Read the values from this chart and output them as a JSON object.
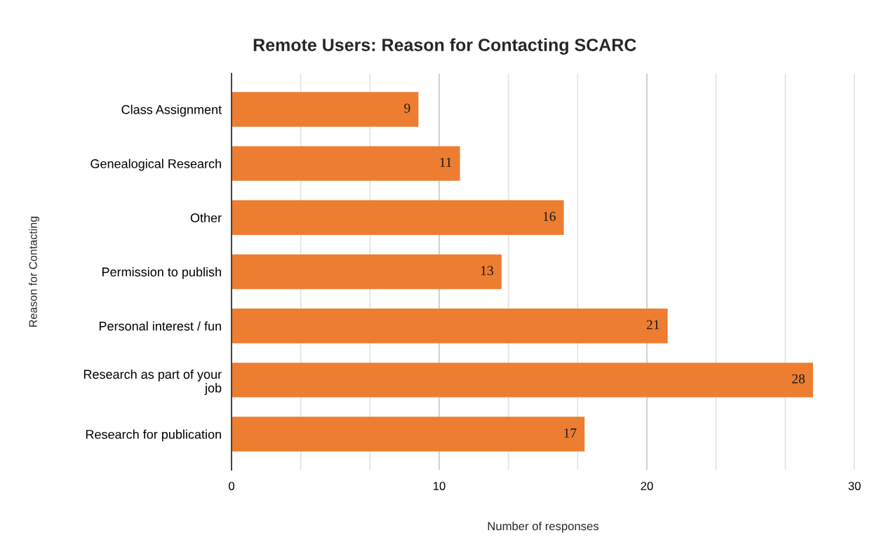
{
  "chart_data": {
    "type": "bar",
    "orientation": "horizontal",
    "title": "Remote Users: Reason for Contacting SCARC",
    "xlabel": "Number of responses",
    "ylabel": "Reason for Contacting",
    "categories": [
      "Class Assignment",
      "Genealogical Research",
      "Other",
      "Permission to publish",
      "Personal interest / fun",
      "Research as part of your\njob",
      "Research for publication"
    ],
    "values": [
      9,
      11,
      16,
      13,
      21,
      28,
      17
    ],
    "color": "#ed7d31",
    "xlim": [
      0,
      30
    ],
    "xticks": [
      0,
      {
        "value": 3.333,
        "label": null
      },
      {
        "value": 6.667,
        "label": null
      },
      10,
      {
        "value": 13.333,
        "label": null
      },
      {
        "value": 16.667,
        "label": null
      },
      20,
      {
        "value": 23.333,
        "label": null
      },
      {
        "value": 26.667,
        "label": null
      },
      30
    ],
    "grid": "x",
    "data_labels": true
  }
}
